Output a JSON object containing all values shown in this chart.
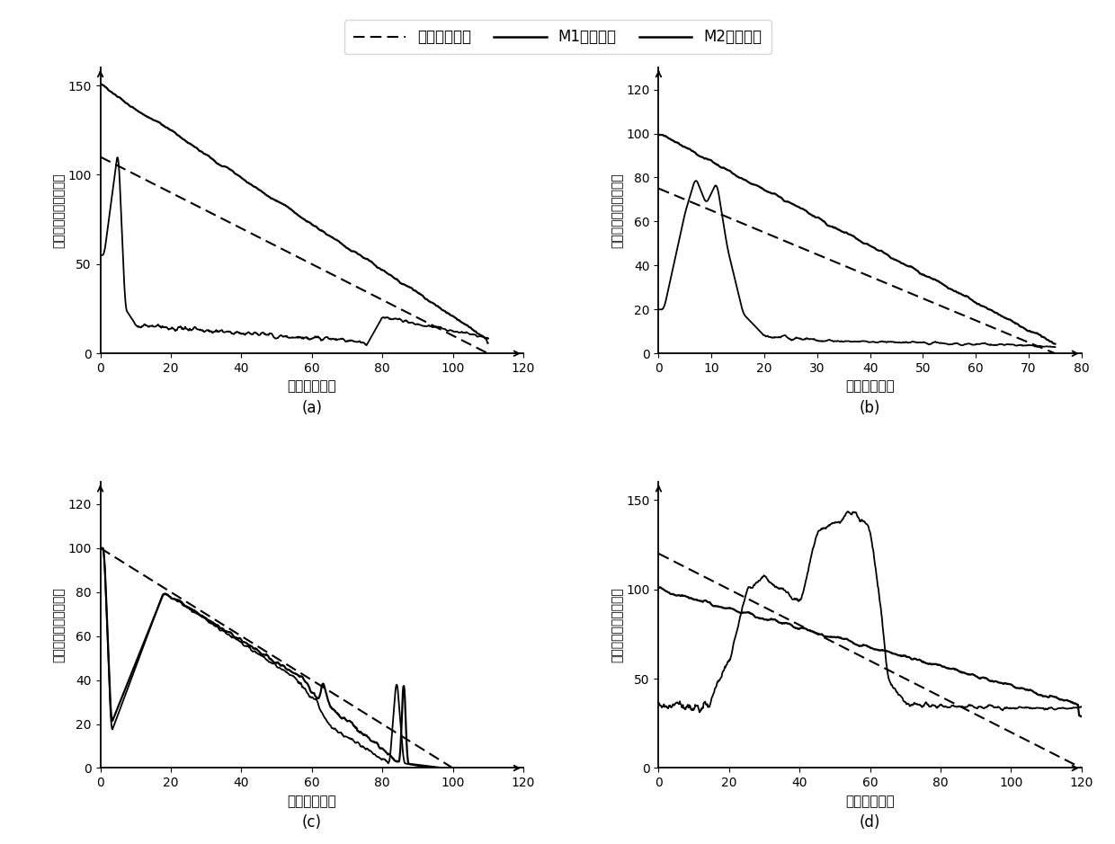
{
  "background_color": "#ffffff",
  "subplots": [
    {
      "label": "(a)",
      "xlabel": "时间（分钟）",
      "ylabel": "剩余使用寿命（分钟）",
      "xlim": [
        0,
        120
      ],
      "ylim": [
        0,
        160
      ],
      "xticks": [
        0,
        20,
        40,
        60,
        80,
        100,
        120
      ],
      "yticks": [
        0,
        50,
        100,
        150
      ]
    },
    {
      "label": "(b)",
      "xlabel": "时间（分钟）",
      "ylabel": "剩余使用寿命（分钟）",
      "xlim": [
        0,
        80
      ],
      "ylim": [
        0,
        130
      ],
      "xticks": [
        0,
        10,
        20,
        30,
        40,
        50,
        60,
        70,
        80
      ],
      "yticks": [
        0,
        20,
        40,
        60,
        80,
        100,
        120
      ]
    },
    {
      "label": "(c)",
      "xlabel": "时间（分钟）",
      "ylabel": "剩余使用寿命（分钟）",
      "xlim": [
        0,
        120
      ],
      "ylim": [
        0,
        130
      ],
      "xticks": [
        0,
        20,
        40,
        60,
        80,
        100,
        120
      ],
      "yticks": [
        0,
        20,
        40,
        60,
        80,
        100,
        120
      ]
    },
    {
      "label": "(d)",
      "xlabel": "时间（分钟）",
      "ylabel": "剩余使用寿命（分钟）",
      "xlim": [
        0,
        120
      ],
      "ylim": [
        0,
        160
      ],
      "xticks": [
        0,
        20,
        40,
        60,
        80,
        100,
        120
      ],
      "yticks": [
        0,
        50,
        100,
        150
      ]
    }
  ],
  "legend": {
    "dashed_label": "真实剩余寿命",
    "m1_label": "M1预测结果",
    "m2_label": "M2预测结果"
  }
}
